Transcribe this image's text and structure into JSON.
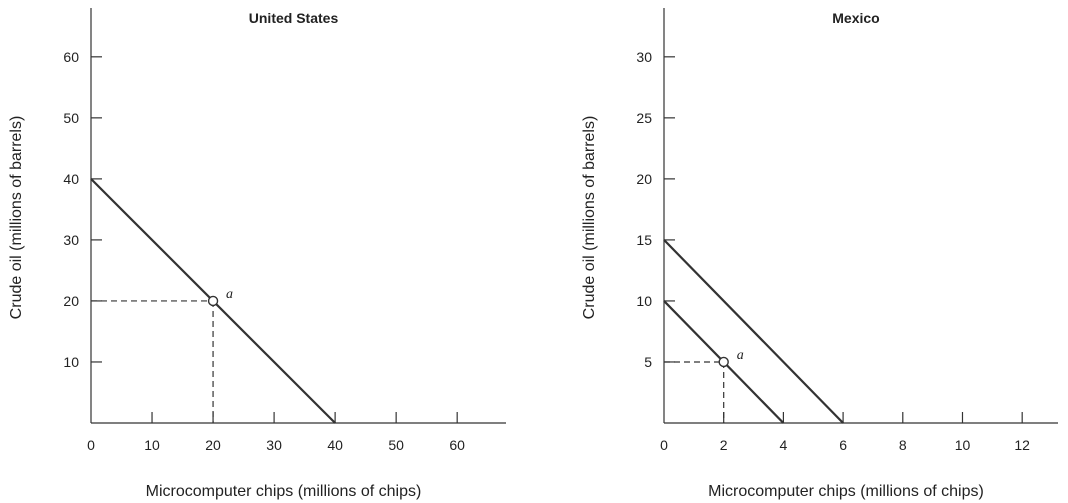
{
  "chart_data": [
    {
      "type": "line",
      "title": "United States",
      "xlabel": "Microcomputer chips (millions of chips)",
      "ylabel": "Crude oil (millions of barrels)",
      "xlim": [
        0,
        68
      ],
      "ylim": [
        0,
        68
      ],
      "xticks": [
        0,
        10,
        20,
        30,
        40,
        50,
        60
      ],
      "yticks": [
        10,
        20,
        30,
        40,
        50,
        60
      ],
      "grid": false,
      "series": [
        {
          "points": [
            [
              0,
              40
            ],
            [
              40,
              0
            ]
          ]
        }
      ],
      "annotations": [
        {
          "label": "a",
          "x": 20,
          "y": 20,
          "guides": true
        }
      ]
    },
    {
      "type": "line",
      "title": "Mexico",
      "xlabel": "Microcomputer chips (millions of chips)",
      "ylabel": "Crude oil (millions of barrels)",
      "xlim": [
        0,
        13.2
      ],
      "ylim": [
        0,
        34
      ],
      "xticks": [
        0,
        2,
        4,
        6,
        8,
        10,
        12
      ],
      "yticks": [
        5,
        10,
        15,
        20,
        25,
        30
      ],
      "grid": false,
      "series": [
        {
          "points": [
            [
              0,
              10
            ],
            [
              4,
              0
            ]
          ]
        },
        {
          "points": [
            [
              0,
              15
            ],
            [
              6,
              0
            ]
          ]
        }
      ],
      "annotations": [
        {
          "label": "a",
          "x": 2,
          "y": 5,
          "guides": true
        }
      ]
    }
  ]
}
